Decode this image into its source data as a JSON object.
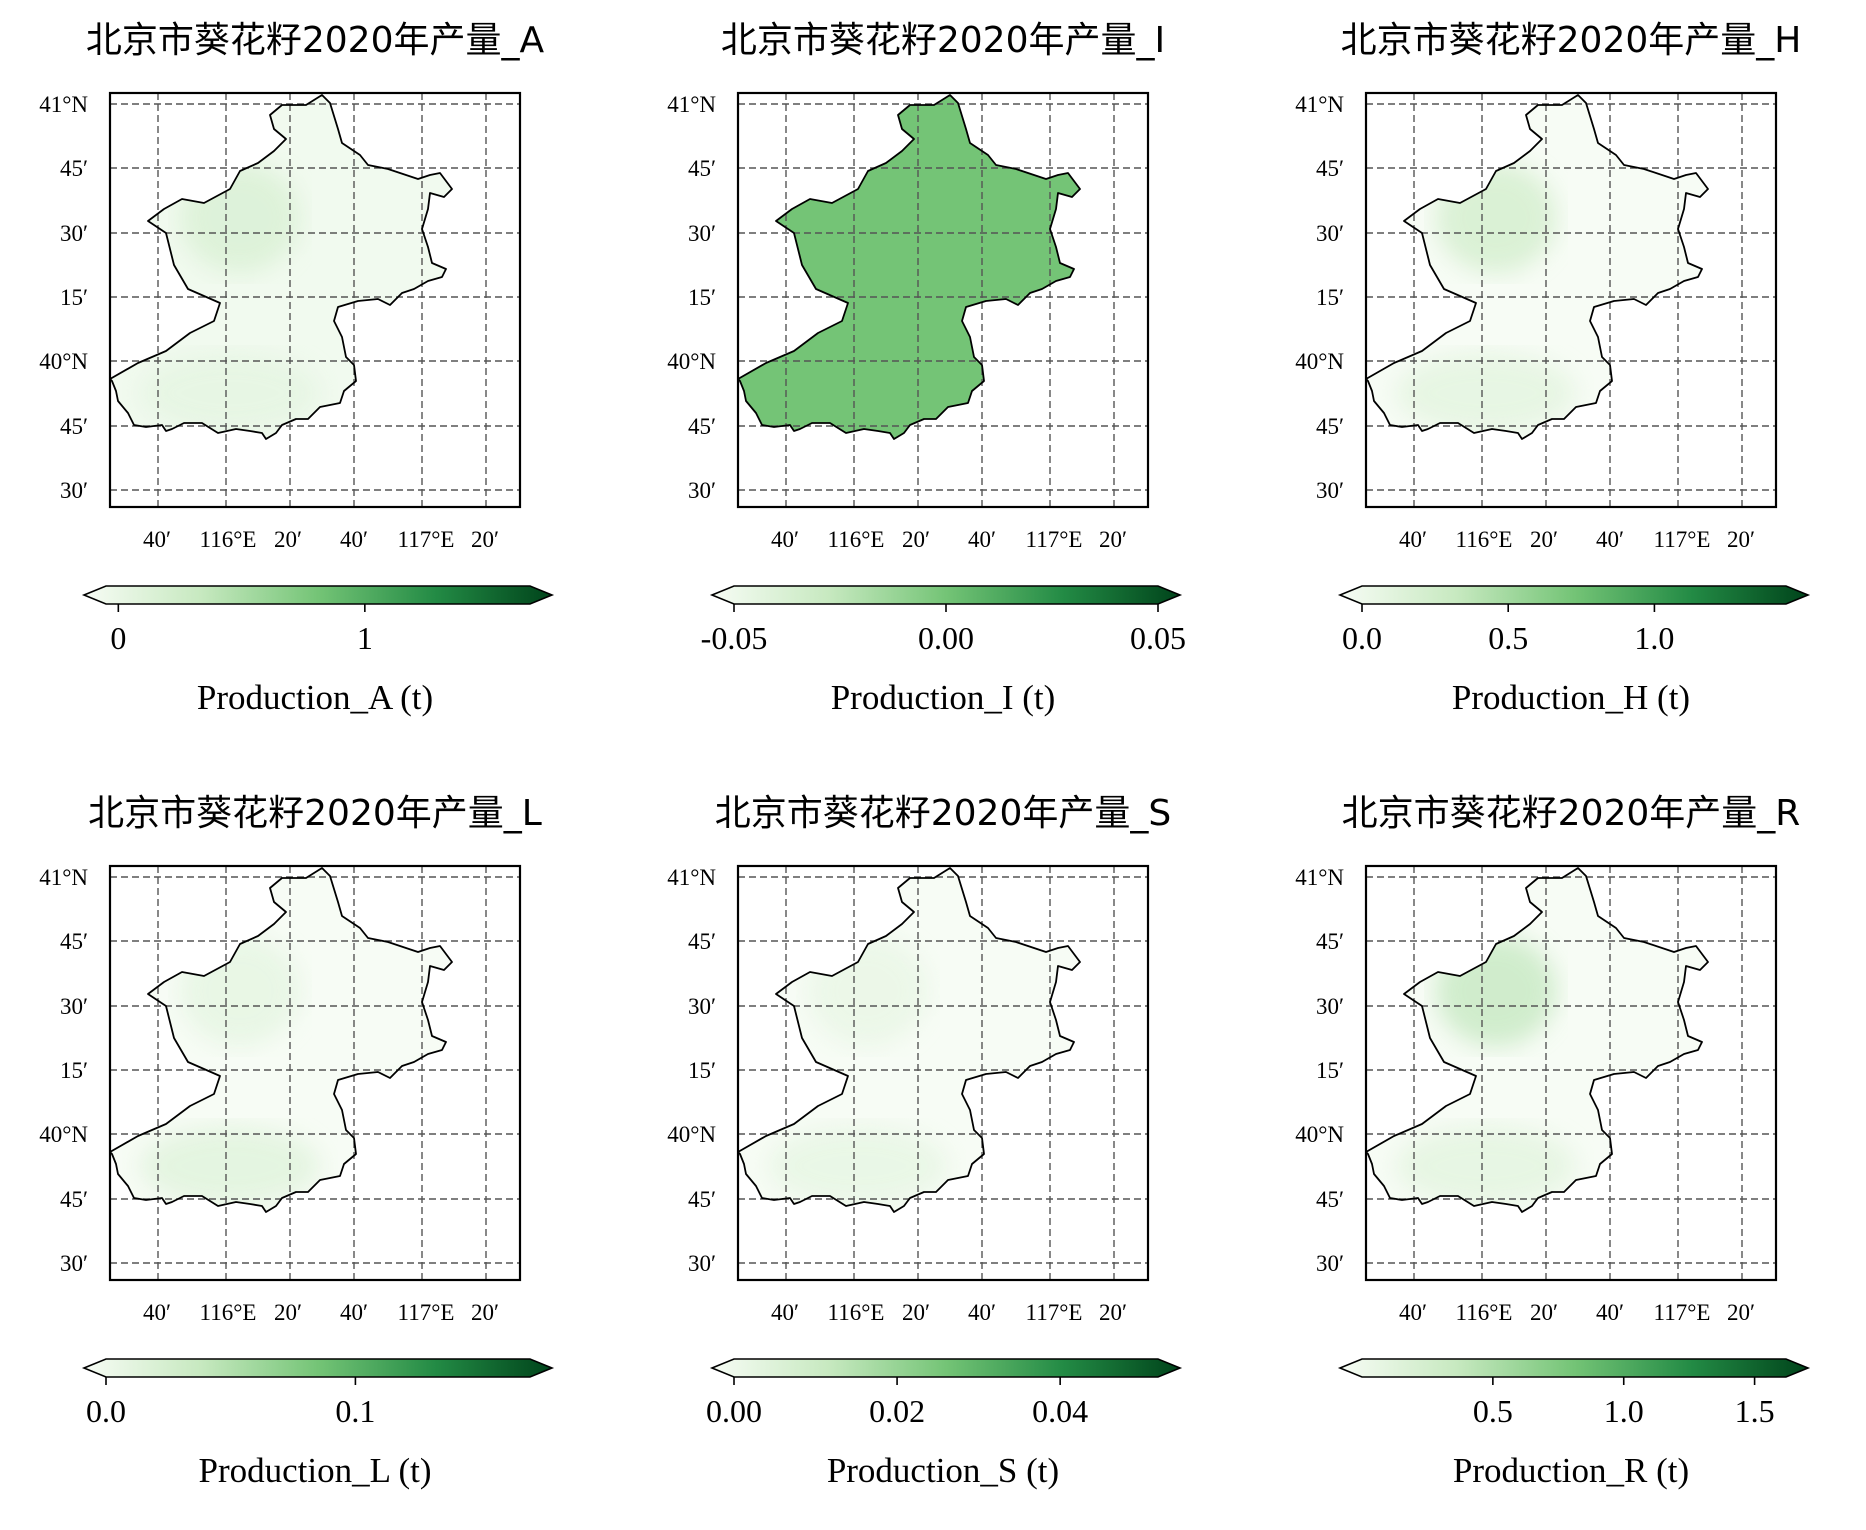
{
  "panels": [
    {
      "title": "北京市葵花籽2020年产量_A",
      "colorbar_label": "Production_A (t)",
      "ticks": [
        "0",
        "1"
      ],
      "tick_values": [
        0,
        1
      ],
      "vmin": -0.05,
      "vmax": 1.67,
      "hotspot_levels": {
        "northwest": 0.08,
        "south": 0.05,
        "tip": 0.55
      }
    },
    {
      "title": "北京市葵花籽2020年产量_I",
      "colorbar_label": "Production_I (t)",
      "ticks": [
        "-0.05",
        "0.00",
        "0.05"
      ],
      "tick_values": [
        -0.05,
        0.0,
        0.05
      ],
      "vmin": -0.05,
      "vmax": 0.05,
      "hotspot_levels": {
        "northwest": 0,
        "south": 0,
        "tip": 0
      }
    },
    {
      "title": "北京市葵花籽2020年产量_H",
      "colorbar_label": "Production_H (t)",
      "ticks": [
        "0.0",
        "0.5",
        "1.0"
      ],
      "tick_values": [
        0.0,
        0.5,
        1.0
      ],
      "vmin": 0.0,
      "vmax": 1.45,
      "hotspot_levels": {
        "northwest": 0.1,
        "south": 0.06,
        "tip": 0.55
      }
    },
    {
      "title": "北京市葵花籽2020年产量_L",
      "colorbar_label": "Production_L (t)",
      "ticks": [
        "0.0",
        "0.1"
      ],
      "tick_values": [
        0.0,
        0.1
      ],
      "vmin": 0.0,
      "vmax": 0.17,
      "hotspot_levels": {
        "northwest": 0.05,
        "south": 0.07,
        "tip": 0.45
      }
    },
    {
      "title": "北京市葵花籽2020年产量_S",
      "colorbar_label": "Production_S (t)",
      "ticks": [
        "0.00",
        "0.02",
        "0.04"
      ],
      "tick_values": [
        0.0,
        0.02,
        0.04
      ],
      "vmin": 0.0,
      "vmax": 0.052,
      "hotspot_levels": {
        "northwest": 0.04,
        "south": 0.05,
        "tip": 0.55
      }
    },
    {
      "title": "北京市葵花籽2020年产量_R",
      "colorbar_label": "Production_R (t)",
      "ticks": [
        "0.5",
        "1.0",
        "1.5"
      ],
      "tick_values": [
        0.5,
        1.0,
        1.5
      ],
      "vmin": 0.0,
      "vmax": 1.62,
      "hotspot_levels": {
        "northwest": 0.12,
        "south": 0.06,
        "tip": 0.6
      }
    }
  ],
  "axes": {
    "lat_labels": [
      "41°N",
      "45′",
      "30′",
      "15′",
      "40°N",
      "45′",
      "30′"
    ],
    "lon_labels": [
      "40′",
      "116°E",
      "20′",
      "40′",
      "117°E",
      "20′"
    ]
  },
  "colormap": {
    "name": "Greens",
    "low": "#f7fcf5",
    "mid": "#74c476",
    "high": "#00441b"
  }
}
